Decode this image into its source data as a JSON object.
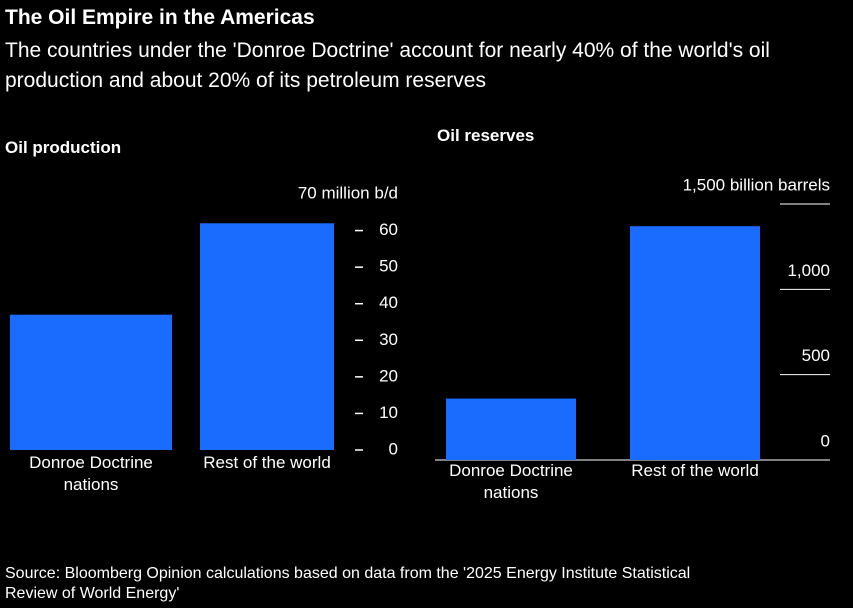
{
  "title": "The Oil Empire in the Americas",
  "subtitle": "The countries under the 'Donroe Doctrine' account for nearly 40% of the world's oil production and about 20% of its petroleum reserves",
  "source": "Source: Bloomberg Opinion calculations based on data from the '2025 Energy Institute Statistical Review of World Energy'",
  "chart_data": [
    {
      "type": "bar",
      "title": "Oil production",
      "categories": [
        "Donroe Doctrine nations",
        "Rest of the world"
      ],
      "values": [
        37,
        62
      ],
      "color": "#1a6bff",
      "ylim": [
        0,
        70
      ],
      "yticks": [
        0,
        10,
        20,
        30,
        40,
        50,
        60,
        {
          "value": 70,
          "label": "70 million b/d"
        }
      ]
    },
    {
      "type": "bar",
      "title": "Oil reserves",
      "categories": [
        "Donroe Doctrine nations",
        "Rest of the world"
      ],
      "values": [
        360,
        1370
      ],
      "color": "#1a6bff",
      "ylim": [
        0,
        1500
      ],
      "yticks": [
        0,
        500,
        {
          "value": 1000,
          "label": "1,000"
        },
        {
          "value": 1500,
          "label": "1,500 billion barrels"
        }
      ],
      "grid": true
    }
  ]
}
